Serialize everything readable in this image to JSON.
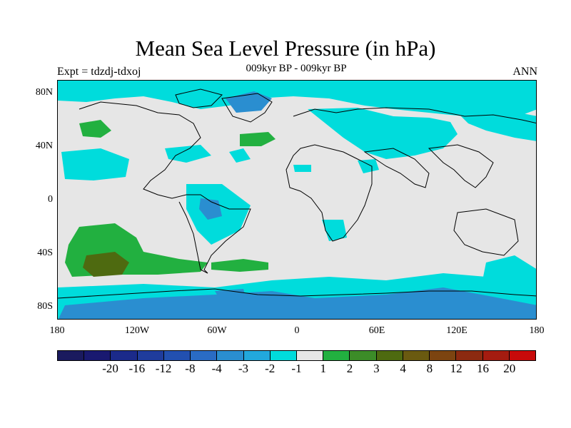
{
  "title": "Mean Sea Level Pressure (in hPa)",
  "subtitle": "009kyr BP - 009kyr BP",
  "expt": "Expt = tdzdj-tdxoj",
  "season": "ANN",
  "y_ticks": [
    "80N",
    "40N",
    "0",
    "40S",
    "80S"
  ],
  "x_ticks": [
    "180",
    "120W",
    "60W",
    "0",
    "60E",
    "120E",
    "180"
  ],
  "colorbar": {
    "colors": [
      "#1a1a5e",
      "#191970",
      "#1b2a8a",
      "#1f3c9c",
      "#2250b0",
      "#2a6cc4",
      "#2a8ed0",
      "#22a8dc",
      "#00dcdc",
      "#e6e6e6",
      "#22b040",
      "#3c8c28",
      "#4e6a10",
      "#6a5a10",
      "#7c4410",
      "#8c2a10",
      "#a41c10",
      "#c80a0a"
    ],
    "labels": [
      "-20",
      "-16",
      "-12",
      "-8",
      "-4",
      "-3",
      "-2",
      "-1",
      "1",
      "2",
      "3",
      "4",
      "8",
      "12",
      "16",
      "20"
    ]
  }
}
